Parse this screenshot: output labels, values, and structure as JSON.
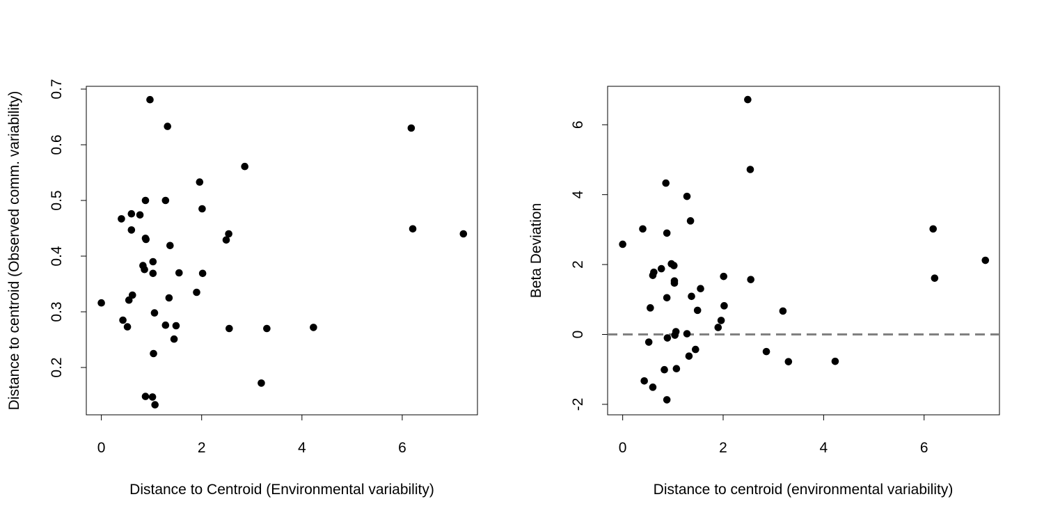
{
  "chart_data": [
    {
      "type": "scatter",
      "title": "",
      "xlabel": "Distance to Centroid (Environmental variability)",
      "ylabel": "Distance to centroid (Observed comm. variability)",
      "xlim": [
        -0.3,
        7.5
      ],
      "ylim": [
        0.115,
        0.705
      ],
      "xticks": [
        0,
        2,
        4,
        6
      ],
      "yticks": [
        0.2,
        0.3,
        0.4,
        0.5,
        0.6,
        0.7
      ],
      "xtick_labels": [
        "0",
        "2",
        "4",
        "6"
      ],
      "ytick_labels": [
        "0.2",
        "0.3",
        "0.4",
        "0.5",
        "0.6",
        "0.7"
      ],
      "grid": false,
      "points": [
        [
          0,
          0.316
        ],
        [
          0.4,
          0.467
        ],
        [
          0.43,
          0.285
        ],
        [
          0.52,
          0.273
        ],
        [
          0.55,
          0.321
        ],
        [
          0.6,
          0.476
        ],
        [
          0.6,
          0.447
        ],
        [
          0.62,
          0.33
        ],
        [
          0.77,
          0.474
        ],
        [
          0.83,
          0.383
        ],
        [
          0.86,
          0.376
        ],
        [
          0.88,
          0.5
        ],
        [
          0.88,
          0.432
        ],
        [
          0.89,
          0.43
        ],
        [
          0.88,
          0.148
        ],
        [
          0.97,
          0.681
        ],
        [
          1.02,
          0.147
        ],
        [
          1.03,
          0.39
        ],
        [
          1.03,
          0.369
        ],
        [
          1.04,
          0.225
        ],
        [
          1.06,
          0.298
        ],
        [
          1.07,
          0.133
        ],
        [
          1.28,
          0.5
        ],
        [
          1.28,
          0.276
        ],
        [
          1.32,
          0.633
        ],
        [
          1.35,
          0.325
        ],
        [
          1.37,
          0.419
        ],
        [
          1.45,
          0.251
        ],
        [
          1.49,
          0.275
        ],
        [
          1.55,
          0.37
        ],
        [
          1.9,
          0.335
        ],
        [
          1.96,
          0.533
        ],
        [
          2.01,
          0.485
        ],
        [
          2.02,
          0.369
        ],
        [
          2.49,
          0.429
        ],
        [
          2.54,
          0.44
        ],
        [
          2.55,
          0.27
        ],
        [
          2.86,
          0.561
        ],
        [
          3.19,
          0.172
        ],
        [
          3.3,
          0.27
        ],
        [
          4.23,
          0.272
        ],
        [
          6.18,
          0.63
        ],
        [
          6.21,
          0.449
        ],
        [
          7.22,
          0.44
        ]
      ]
    },
    {
      "type": "scatter",
      "title": "",
      "xlabel": "Distance to centroid (environmental variability)",
      "ylabel": "Beta Deviation",
      "xlim": [
        -0.3,
        7.5
      ],
      "ylim": [
        -2.3,
        7.1
      ],
      "xticks": [
        0,
        2,
        4,
        6
      ],
      "yticks": [
        -2,
        0,
        2,
        4,
        6
      ],
      "xtick_labels": [
        "0",
        "2",
        "4",
        "6"
      ],
      "ytick_labels": [
        "-2",
        "0",
        "2",
        "4",
        "6"
      ],
      "grid": false,
      "reference_line": {
        "y": 0,
        "style": "dashed",
        "color": "#808080"
      },
      "points": [
        [
          0,
          2.58
        ],
        [
          0.4,
          3.02
        ],
        [
          0.43,
          -1.33
        ],
        [
          0.52,
          -0.22
        ],
        [
          0.55,
          0.76
        ],
        [
          0.6,
          1.69
        ],
        [
          0.62,
          1.78
        ],
        [
          0.6,
          -1.51
        ],
        [
          0.77,
          1.88
        ],
        [
          0.83,
          -1.01
        ],
        [
          0.86,
          4.33
        ],
        [
          0.88,
          2.9
        ],
        [
          0.88,
          1.05
        ],
        [
          0.89,
          -0.1
        ],
        [
          0.88,
          -1.87
        ],
        [
          0.97,
          2.02
        ],
        [
          1.02,
          1.97
        ],
        [
          1.03,
          1.47
        ],
        [
          1.03,
          1.53
        ],
        [
          1.04,
          -0.02
        ],
        [
          1.06,
          0.08
        ],
        [
          1.07,
          -0.98
        ],
        [
          1.28,
          3.95
        ],
        [
          1.28,
          0.02
        ],
        [
          1.32,
          -0.62
        ],
        [
          1.35,
          3.25
        ],
        [
          1.37,
          1.09
        ],
        [
          1.45,
          -0.43
        ],
        [
          1.49,
          0.69
        ],
        [
          1.55,
          1.31
        ],
        [
          1.9,
          0.2
        ],
        [
          1.96,
          0.4
        ],
        [
          2.01,
          1.66
        ],
        [
          2.02,
          0.82
        ],
        [
          2.49,
          6.72
        ],
        [
          2.54,
          4.72
        ],
        [
          2.55,
          1.57
        ],
        [
          2.86,
          -0.49
        ],
        [
          3.19,
          0.67
        ],
        [
          3.3,
          -0.78
        ],
        [
          4.23,
          -0.77
        ],
        [
          6.18,
          3.02
        ],
        [
          6.21,
          1.61
        ],
        [
          7.22,
          2.12
        ]
      ]
    }
  ]
}
